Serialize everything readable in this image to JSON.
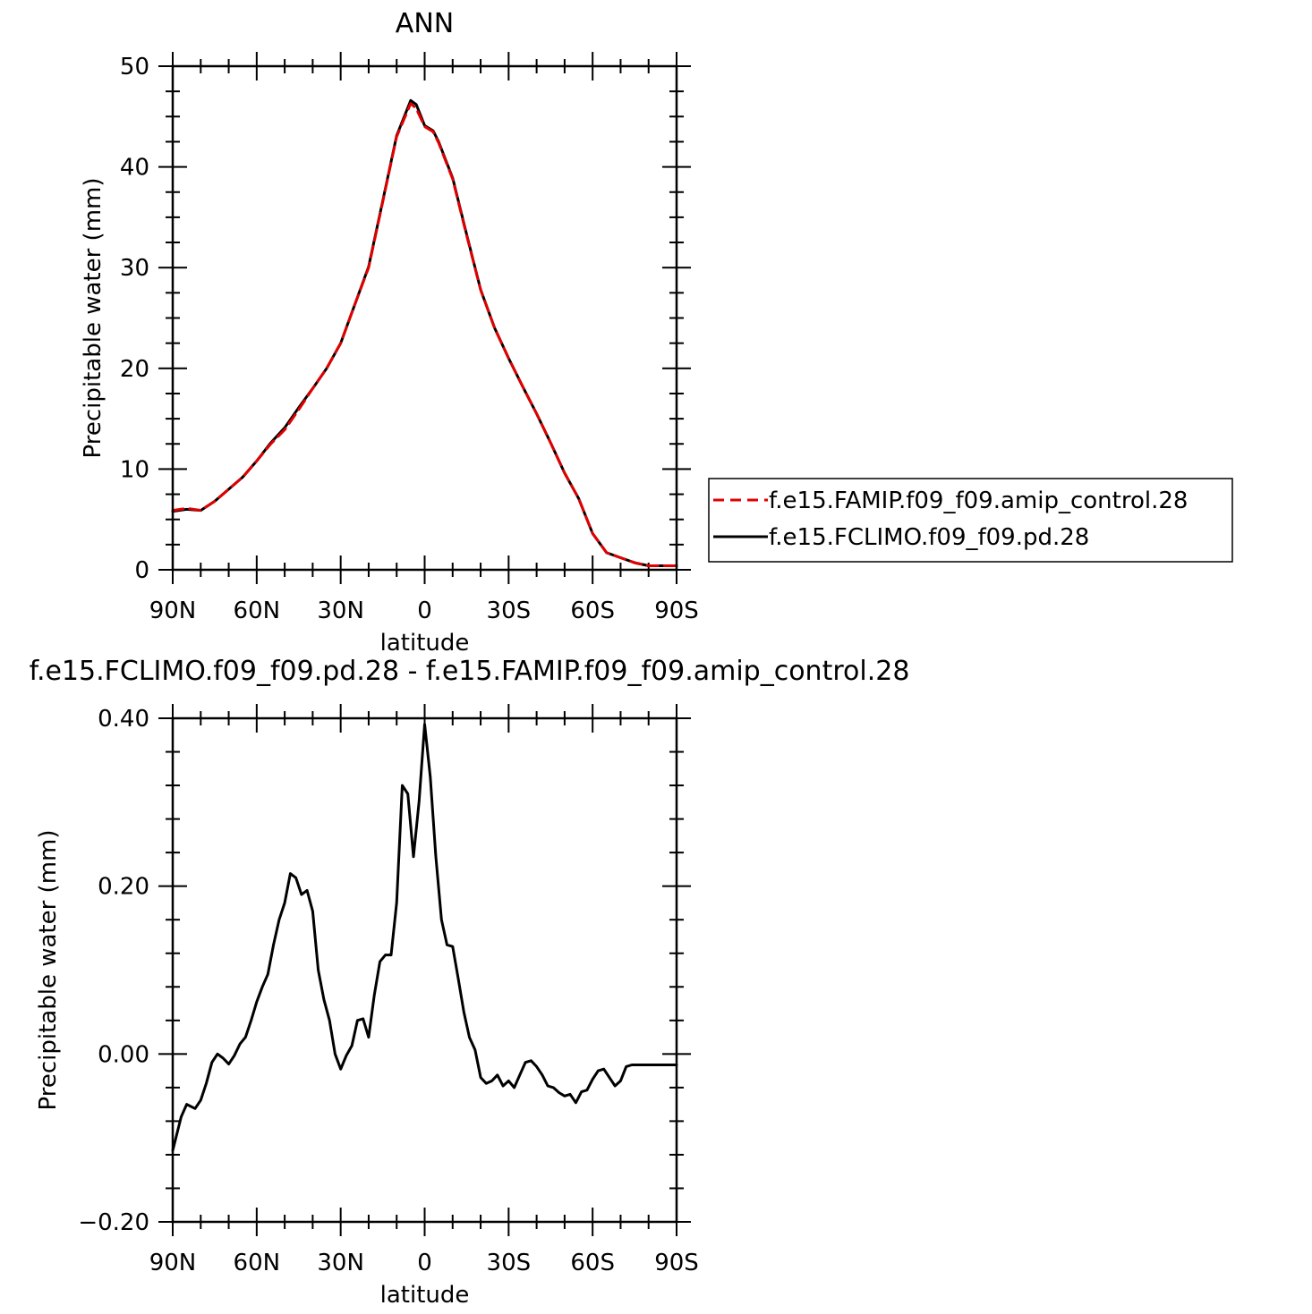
{
  "colors": {
    "amip": "#e00000",
    "pd": "#000000"
  },
  "chart_data": [
    {
      "type": "line",
      "title": "ANN",
      "xlabel": "latitude",
      "ylabel": "Precipitable water (mm)",
      "x_ticks": [
        "90N",
        "60N",
        "30N",
        "0",
        "30S",
        "60S",
        "90S"
      ],
      "y_ticks": [
        "0",
        "10",
        "20",
        "30",
        "40",
        "50"
      ],
      "xlim": [
        90,
        -90
      ],
      "ylim": [
        0,
        50
      ],
      "legend_position": "right",
      "x": [
        90,
        85,
        80,
        75,
        70,
        65,
        60,
        55,
        50,
        45,
        40,
        35,
        30,
        25,
        20,
        15,
        10,
        5,
        3,
        0,
        -3,
        -5,
        -10,
        -15,
        -20,
        -25,
        -30,
        -35,
        -40,
        -45,
        -50,
        -55,
        -60,
        -65,
        -70,
        -75,
        -80,
        -85,
        -90
      ],
      "series": [
        {
          "name": "f.e15.FAMIP.f09_f09.amip_control.28",
          "style": "dashed",
          "values": [
            5.9,
            6.1,
            5.9,
            6.8,
            8.0,
            9.2,
            10.8,
            12.5,
            13.9,
            15.9,
            18.0,
            20.0,
            22.5,
            26.3,
            30.0,
            36.5,
            43.0,
            46.3,
            45.8,
            44.0,
            43.5,
            42.4,
            38.8,
            33.2,
            27.8,
            24.0,
            21.0,
            18.2,
            15.5,
            12.6,
            9.6,
            7.1,
            3.6,
            1.7,
            1.2,
            0.7,
            0.4,
            0.4,
            0.4
          ]
        },
        {
          "name": "f.e15.FCLIMO.f09_f09.pd.28",
          "style": "solid",
          "values": [
            5.8,
            6.0,
            5.9,
            6.8,
            8.0,
            9.2,
            10.8,
            12.6,
            14.1,
            16.1,
            18.0,
            20.0,
            22.5,
            26.3,
            30.1,
            36.6,
            43.1,
            46.6,
            46.2,
            44.1,
            43.6,
            42.5,
            38.9,
            33.3,
            27.8,
            24.0,
            21.0,
            18.2,
            15.5,
            12.6,
            9.6,
            7.1,
            3.6,
            1.7,
            1.2,
            0.7,
            0.4,
            0.4,
            0.4
          ]
        }
      ]
    },
    {
      "type": "line",
      "title": "f.e15.FCLIMO.f09_f09.pd.28 - f.e15.FAMIP.f09_f09.amip_control.28",
      "xlabel": "latitude",
      "ylabel": "Precipitable water (mm)",
      "x_ticks": [
        "90N",
        "60N",
        "30N",
        "0",
        "30S",
        "60S",
        "90S"
      ],
      "y_ticks": [
        "-0.20",
        "0.00",
        "0.20",
        "0.40"
      ],
      "xlim": [
        90,
        -90
      ],
      "ylim": [
        -0.2,
        0.4
      ],
      "x": [
        90,
        87,
        85,
        82,
        80,
        78,
        76,
        74,
        72,
        70,
        68,
        66,
        64,
        62,
        60,
        58,
        56,
        54,
        52,
        50,
        48,
        46,
        44,
        42,
        40,
        38,
        36,
        34,
        32,
        30,
        28,
        26,
        24,
        22,
        20,
        18,
        16,
        14,
        12,
        10,
        8,
        6,
        4,
        2,
        0,
        -2,
        -4,
        -6,
        -8,
        -10,
        -12,
        -14,
        -16,
        -18,
        -20,
        -22,
        -24,
        -26,
        -28,
        -30,
        -32,
        -34,
        -36,
        -38,
        -40,
        -42,
        -44,
        -46,
        -48,
        -50,
        -52,
        -54,
        -56,
        -58,
        -60,
        -62,
        -64,
        -66,
        -68,
        -70,
        -72,
        -74,
        -76,
        -78,
        -80,
        -82,
        -84,
        -86,
        -88,
        -90
      ],
      "series": [
        {
          "values": [
            -0.115,
            -0.075,
            -0.06,
            -0.065,
            -0.055,
            -0.035,
            -0.01,
            0.0,
            -0.005,
            -0.012,
            -0.002,
            0.012,
            0.02,
            0.04,
            0.062,
            0.08,
            0.095,
            0.13,
            0.16,
            0.18,
            0.215,
            0.21,
            0.19,
            0.195,
            0.17,
            0.1,
            0.065,
            0.04,
            0.0,
            -0.018,
            -0.002,
            0.01,
            0.04,
            0.042,
            0.02,
            0.07,
            0.11,
            0.118,
            0.118,
            0.18,
            0.32,
            0.31,
            0.235,
            0.3,
            0.393,
            0.33,
            0.235,
            0.16,
            0.13,
            0.128,
            0.09,
            0.05,
            0.02,
            0.005,
            -0.028,
            -0.035,
            -0.032,
            -0.025,
            -0.038,
            -0.032,
            -0.04,
            -0.025,
            -0.01,
            -0.008,
            -0.015,
            -0.025,
            -0.038,
            -0.04,
            -0.046,
            -0.05,
            -0.048,
            -0.058,
            -0.045,
            -0.043,
            -0.03,
            -0.02,
            -0.018,
            -0.028,
            -0.038,
            -0.032,
            -0.015,
            -0.013,
            -0.013,
            -0.013,
            -0.013,
            -0.013,
            -0.013,
            -0.013,
            -0.013,
            -0.013
          ]
        }
      ]
    }
  ]
}
